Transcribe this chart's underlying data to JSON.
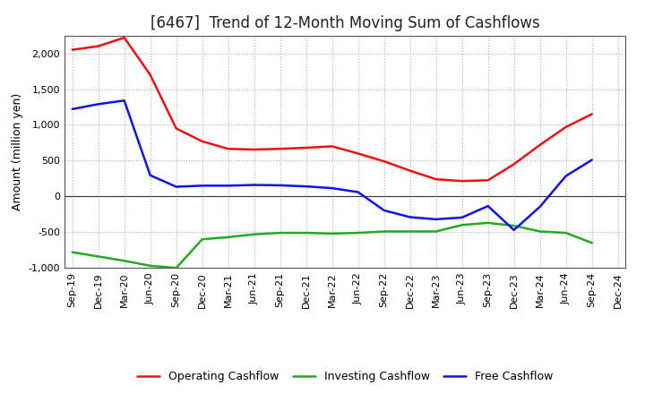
{
  "title": "[6467]  Trend of 12-Month Moving Sum of Cashflows",
  "ylabel": "Amount (million yen)",
  "ylim": [
    -1000,
    2250
  ],
  "yticks": [
    -1000,
    -500,
    0,
    500,
    1000,
    1500,
    2000
  ],
  "background_color": "#ffffff",
  "grid_color": "#b0b0b0",
  "x_labels": [
    "Sep-19",
    "Dec-19",
    "Mar-20",
    "Jun-20",
    "Sep-20",
    "Dec-20",
    "Mar-21",
    "Jun-21",
    "Sep-21",
    "Dec-21",
    "Mar-22",
    "Jun-22",
    "Sep-22",
    "Dec-22",
    "Mar-23",
    "Jun-23",
    "Sep-23",
    "Dec-23",
    "Mar-24",
    "Jun-24",
    "Sep-24",
    "Dec-24"
  ],
  "operating_cashflow": [
    2050,
    2100,
    2220,
    1700,
    950,
    770,
    665,
    655,
    665,
    680,
    700,
    600,
    490,
    360,
    240,
    215,
    225,
    450,
    720,
    970,
    1150,
    null
  ],
  "investing_cashflow": [
    -780,
    -840,
    -900,
    -970,
    -1000,
    -600,
    -570,
    -530,
    -510,
    -510,
    -520,
    -510,
    -490,
    -490,
    -490,
    -400,
    -370,
    -410,
    -490,
    -510,
    -650,
    null
  ],
  "free_cashflow": [
    1220,
    1290,
    1340,
    295,
    135,
    150,
    150,
    160,
    155,
    140,
    115,
    60,
    -195,
    -290,
    -320,
    -295,
    -135,
    -470,
    -145,
    285,
    510,
    null
  ],
  "operating_color": "#ee1111",
  "investing_color": "#22aa22",
  "free_color": "#1111ee",
  "line_width": 1.8,
  "title_fontsize": 12,
  "title_color": "#222222",
  "label_fontsize": 9,
  "tick_fontsize": 8,
  "legend_fontsize": 9
}
